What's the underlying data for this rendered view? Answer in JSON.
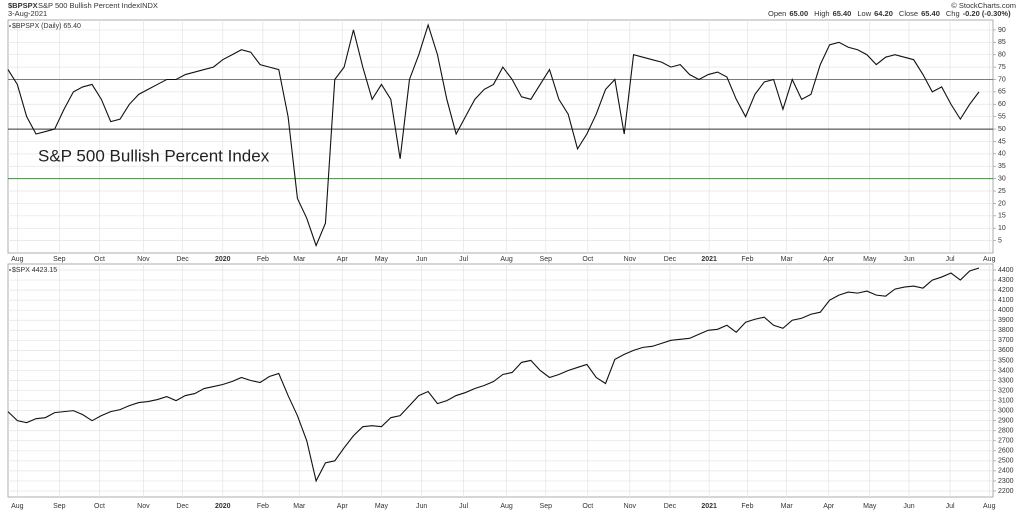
{
  "header": {
    "symbol": "$BPSPX",
    "name": "S&P 500 Bullish Percent Index",
    "exchange": "INDX",
    "date": "3-Aug-2021",
    "copyright": "© StockCharts.com",
    "quote": [
      {
        "label": "Open",
        "value": "65.00"
      },
      {
        "label": "High",
        "value": "65.40"
      },
      {
        "label": "Low",
        "value": "64.20"
      },
      {
        "label": "Close",
        "value": "65.40"
      },
      {
        "label": "Chg",
        "value": "-0.20 (-0.30%)"
      }
    ]
  },
  "chart_data": [
    {
      "type": "line",
      "legend_label": "$BPSPX (Daily) 65.40",
      "annotation": "S&P 500 Bullish Percent Index",
      "color": "#111111",
      "grid": true,
      "reference_lines": [
        {
          "value": 70,
          "color": "#d9534f"
        },
        {
          "value": 50,
          "color": "#333333"
        },
        {
          "value": 30,
          "color": "#4a8a4a"
        }
      ],
      "xlim": [
        0,
        105.5
      ],
      "ylim": [
        0,
        94
      ],
      "yticks": [
        5,
        10,
        15,
        20,
        25,
        30,
        35,
        40,
        45,
        50,
        55,
        60,
        65,
        70,
        75,
        80,
        85,
        90
      ],
      "xticks": [
        {
          "value": 1,
          "label": "Aug"
        },
        {
          "value": 5.5,
          "label": "Sep"
        },
        {
          "value": 9.8,
          "label": "Oct"
        },
        {
          "value": 14.5,
          "label": "Nov"
        },
        {
          "value": 18.7,
          "label": "Dec"
        },
        {
          "value": 23,
          "label": "2020"
        },
        {
          "value": 27.3,
          "label": "Feb"
        },
        {
          "value": 31.2,
          "label": "Mar"
        },
        {
          "value": 35.8,
          "label": "Apr"
        },
        {
          "value": 40,
          "label": "May"
        },
        {
          "value": 44.3,
          "label": "Jun"
        },
        {
          "value": 48.8,
          "label": "Jul"
        },
        {
          "value": 53.4,
          "label": "Aug"
        },
        {
          "value": 57.6,
          "label": "Sep"
        },
        {
          "value": 62.1,
          "label": "Oct"
        },
        {
          "value": 66.6,
          "label": "Nov"
        },
        {
          "value": 70.9,
          "label": "Dec"
        },
        {
          "value": 75.1,
          "label": "2021"
        },
        {
          "value": 79.2,
          "label": "Feb"
        },
        {
          "value": 83.4,
          "label": "Mar"
        },
        {
          "value": 87.9,
          "label": "Apr"
        },
        {
          "value": 92.3,
          "label": "May"
        },
        {
          "value": 96.5,
          "label": "Jun"
        },
        {
          "value": 100.9,
          "label": "Jul"
        },
        {
          "value": 105.1,
          "label": "Aug"
        }
      ],
      "values": [
        74,
        68,
        55,
        48,
        49,
        50,
        58,
        65,
        67,
        68,
        62,
        53,
        54,
        60,
        64,
        66,
        68,
        70,
        70,
        72,
        73,
        74,
        75,
        78,
        80,
        82,
        81,
        76,
        75,
        74,
        55,
        22,
        14,
        3,
        12,
        70,
        75,
        90,
        75,
        62,
        68,
        62,
        38,
        70,
        80,
        92,
        80,
        62,
        48,
        55,
        62,
        66,
        68,
        75,
        70,
        63,
        62,
        68,
        74,
        62,
        56,
        42,
        48,
        56,
        66,
        70,
        48,
        80,
        79,
        78,
        77,
        75,
        76,
        72,
        70,
        72,
        73,
        71,
        62,
        55,
        64,
        69,
        70,
        58,
        70,
        62,
        64,
        76,
        84,
        85,
        83,
        82,
        80,
        76,
        79,
        80,
        79,
        78,
        72,
        65,
        67,
        60,
        54,
        60,
        65
      ]
    },
    {
      "type": "line",
      "legend_label": "$SPX 4423.15",
      "color": "#111111",
      "grid": true,
      "xlim": [
        0,
        105.5
      ],
      "ylim": [
        2140,
        4460
      ],
      "yticks": [
        2200,
        2300,
        2400,
        2500,
        2600,
        2700,
        2800,
        2900,
        3000,
        3100,
        3200,
        3300,
        3400,
        3500,
        3600,
        3700,
        3800,
        3900,
        4000,
        4100,
        4200,
        4300,
        4400
      ],
      "xticks": [
        {
          "value": 1,
          "label": "Aug"
        },
        {
          "value": 5.5,
          "label": "Sep"
        },
        {
          "value": 9.8,
          "label": "Oct"
        },
        {
          "value": 14.5,
          "label": "Nov"
        },
        {
          "value": 18.7,
          "label": "Dec"
        },
        {
          "value": 23,
          "label": "2020"
        },
        {
          "value": 27.3,
          "label": "Feb"
        },
        {
          "value": 31.2,
          "label": "Mar"
        },
        {
          "value": 35.8,
          "label": "Apr"
        },
        {
          "value": 40,
          "label": "May"
        },
        {
          "value": 44.3,
          "label": "Jun"
        },
        {
          "value": 48.8,
          "label": "Jul"
        },
        {
          "value": 53.4,
          "label": "Aug"
        },
        {
          "value": 57.6,
          "label": "Sep"
        },
        {
          "value": 62.1,
          "label": "Oct"
        },
        {
          "value": 66.6,
          "label": "Nov"
        },
        {
          "value": 70.9,
          "label": "Dec"
        },
        {
          "value": 75.1,
          "label": "2021"
        },
        {
          "value": 79.2,
          "label": "Feb"
        },
        {
          "value": 83.4,
          "label": "Mar"
        },
        {
          "value": 87.9,
          "label": "Apr"
        },
        {
          "value": 92.3,
          "label": "May"
        },
        {
          "value": 96.5,
          "label": "Jun"
        },
        {
          "value": 100.9,
          "label": "Jul"
        },
        {
          "value": 105.1,
          "label": "Aug"
        }
      ],
      "values": [
        2990,
        2900,
        2880,
        2920,
        2930,
        2980,
        2990,
        3000,
        2960,
        2900,
        2950,
        2990,
        3010,
        3050,
        3080,
        3090,
        3110,
        3140,
        3100,
        3150,
        3170,
        3220,
        3240,
        3260,
        3290,
        3330,
        3300,
        3280,
        3340,
        3370,
        3150,
        2950,
        2700,
        2300,
        2480,
        2500,
        2630,
        2750,
        2840,
        2850,
        2840,
        2930,
        2950,
        3050,
        3150,
        3190,
        3070,
        3100,
        3150,
        3180,
        3220,
        3250,
        3290,
        3360,
        3380,
        3480,
        3500,
        3400,
        3330,
        3360,
        3400,
        3430,
        3460,
        3330,
        3270,
        3510,
        3560,
        3600,
        3630,
        3640,
        3670,
        3700,
        3710,
        3720,
        3760,
        3800,
        3810,
        3850,
        3780,
        3880,
        3910,
        3930,
        3850,
        3820,
        3900,
        3920,
        3960,
        3980,
        4100,
        4150,
        4180,
        4170,
        4190,
        4150,
        4140,
        4210,
        4230,
        4240,
        4220,
        4300,
        4330,
        4370,
        4300,
        4390,
        4420
      ]
    }
  ]
}
